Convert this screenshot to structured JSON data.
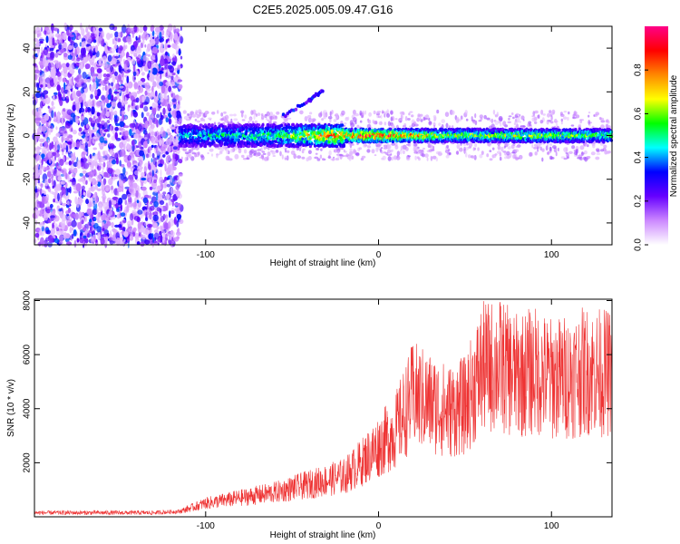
{
  "title": "C2E5.2025.005.09.47.G16",
  "chart_data": [
    {
      "type": "heatmap",
      "xlabel": "Height of straight line (km)",
      "ylabel": "Frequency (Hz)",
      "xlim": [
        -199,
        135
      ],
      "ylim": [
        -50,
        50
      ],
      "xticks": [
        -100,
        0,
        100
      ],
      "yticks": [
        -40,
        -20,
        0,
        20,
        40
      ],
      "grid": false,
      "colorbar": {
        "label": "Normalized spectral amplitude",
        "range": [
          0,
          1
        ],
        "ticks": [
          "0.0",
          "0.2",
          "0.4",
          "0.6",
          "0.8"
        ],
        "colors": [
          "#ffffff",
          "#cc88ff",
          "#6600ff",
          "#0000ff",
          "#00ffff",
          "#00ff00",
          "#ffff00",
          "#ff8800",
          "#ff0000",
          "#ff0088"
        ]
      },
      "features": {
        "noise_region_x": [
          -199,
          -114
        ],
        "carrier_start_x": -115,
        "carrier_freq_hz": 0,
        "carrier_amplitude_profile": [
          {
            "x": -115,
            "amp": 0.35
          },
          {
            "x": -60,
            "amp": 0.45
          },
          {
            "x": -25,
            "amp": 0.75
          },
          {
            "x": 0,
            "amp": 0.85
          },
          {
            "x": 40,
            "amp": 0.55
          },
          {
            "x": 100,
            "amp": 0.55
          },
          {
            "x": 135,
            "amp": 0.5
          }
        ],
        "side_trace": [
          {
            "x": -55,
            "y": 9
          },
          {
            "x": -40,
            "y": 16
          },
          {
            "x": -32,
            "y": 21
          }
        ]
      }
    },
    {
      "type": "line",
      "xlabel": "Height of straight line (km)",
      "ylabel": "SNR (10 * v/v)",
      "xlim": [
        -199,
        135
      ],
      "ylim": [
        0,
        8050
      ],
      "xticks": [
        -100,
        0,
        100
      ],
      "yticks": [
        2000,
        4000,
        6000,
        8000
      ],
      "grid": false,
      "color": "#ee3333",
      "trend": {
        "x": [
          -199,
          -130,
          -115,
          -100,
          -80,
          -60,
          -40,
          -20,
          -10,
          0,
          10,
          20,
          30,
          40,
          50,
          60,
          70,
          80,
          90,
          100,
          110,
          120,
          135
        ],
        "y": [
          150,
          150,
          200,
          500,
          700,
          900,
          1200,
          1500,
          2000,
          2600,
          3200,
          4500,
          4200,
          3900,
          4100,
          5500,
          5600,
          5200,
          5400,
          5100,
          5200,
          5400,
          5300
        ]
      }
    }
  ]
}
